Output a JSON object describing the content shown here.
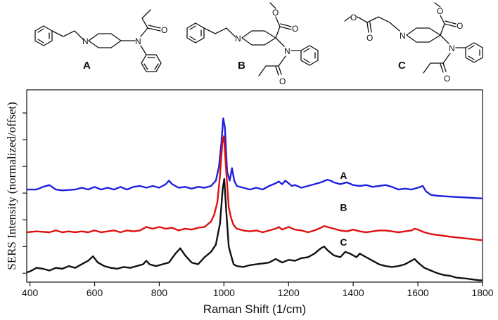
{
  "structures": {
    "A": {
      "label": "A",
      "atoms": [
        "N",
        "N",
        "O"
      ]
    },
    "B": {
      "label": "B",
      "atoms": [
        "N",
        "N",
        "O",
        "O",
        "O"
      ]
    },
    "C": {
      "label": "C",
      "atoms": [
        "O",
        "O",
        "N",
        "O",
        "O",
        "N",
        "O"
      ]
    }
  },
  "chart_data": {
    "type": "line",
    "title": "",
    "xlabel": "Raman Shift (1/cm)",
    "ylabel": "SERS Intensity (normalized/offset)",
    "xlim": [
      390,
      1800
    ],
    "xticks": [
      400,
      600,
      800,
      1000,
      1200,
      1400,
      1600,
      1800
    ],
    "ylim": [
      0,
      1.08
    ],
    "yticks": [
      0.05,
      0.2,
      0.35,
      0.5,
      0.65,
      0.8,
      0.95
    ],
    "grid": false,
    "series": [
      {
        "name": "A",
        "color": "#1f1fe0",
        "label_at": [
          1370,
          0.58
        ],
        "x": [
          390,
          420,
          440,
          460,
          480,
          500,
          540,
          560,
          580,
          600,
          620,
          640,
          660,
          680,
          700,
          720,
          740,
          760,
          780,
          800,
          820,
          830,
          840,
          860,
          880,
          900,
          920,
          940,
          960,
          975,
          985,
          992,
          998,
          1003,
          1010,
          1018,
          1025,
          1032,
          1040,
          1060,
          1080,
          1100,
          1120,
          1140,
          1160,
          1170,
          1180,
          1190,
          1200,
          1210,
          1220,
          1240,
          1260,
          1280,
          1300,
          1320,
          1330,
          1340,
          1360,
          1380,
          1400,
          1420,
          1440,
          1460,
          1480,
          1500,
          1520,
          1540,
          1560,
          1580,
          1600,
          1615,
          1625,
          1640,
          1660,
          1700,
          1750,
          1800
        ],
        "y": [
          0.52,
          0.52,
          0.535,
          0.545,
          0.52,
          0.515,
          0.52,
          0.53,
          0.52,
          0.535,
          0.52,
          0.53,
          0.52,
          0.535,
          0.52,
          0.535,
          0.54,
          0.53,
          0.54,
          0.53,
          0.55,
          0.57,
          0.55,
          0.53,
          0.535,
          0.525,
          0.535,
          0.53,
          0.54,
          0.57,
          0.65,
          0.78,
          0.92,
          0.87,
          0.62,
          0.57,
          0.64,
          0.57,
          0.54,
          0.53,
          0.52,
          0.53,
          0.52,
          0.54,
          0.555,
          0.565,
          0.55,
          0.57,
          0.555,
          0.54,
          0.545,
          0.53,
          0.54,
          0.55,
          0.56,
          0.575,
          0.57,
          0.56,
          0.55,
          0.56,
          0.545,
          0.54,
          0.545,
          0.535,
          0.54,
          0.545,
          0.535,
          0.52,
          0.525,
          0.52,
          0.53,
          0.54,
          0.51,
          0.49,
          0.485,
          0.48,
          0.475,
          0.47
        ]
      },
      {
        "name": "B",
        "color": "#e01010",
        "label_at": [
          1370,
          0.4
        ],
        "x": [
          390,
          420,
          460,
          480,
          500,
          520,
          540,
          560,
          580,
          600,
          620,
          640,
          660,
          680,
          700,
          720,
          740,
          760,
          780,
          800,
          820,
          840,
          860,
          880,
          900,
          920,
          940,
          960,
          970,
          980,
          988,
          995,
          1000,
          1008,
          1015,
          1022,
          1030,
          1040,
          1060,
          1080,
          1100,
          1120,
          1140,
          1160,
          1170,
          1180,
          1200,
          1220,
          1240,
          1260,
          1280,
          1300,
          1310,
          1320,
          1340,
          1360,
          1380,
          1400,
          1420,
          1440,
          1460,
          1480,
          1500,
          1520,
          1540,
          1560,
          1580,
          1590,
          1600,
          1620,
          1640,
          1660,
          1700,
          1750,
          1800
        ],
        "y": [
          0.28,
          0.285,
          0.28,
          0.29,
          0.28,
          0.285,
          0.28,
          0.285,
          0.28,
          0.29,
          0.28,
          0.285,
          0.29,
          0.28,
          0.29,
          0.285,
          0.29,
          0.31,
          0.3,
          0.31,
          0.3,
          0.305,
          0.29,
          0.3,
          0.295,
          0.305,
          0.31,
          0.34,
          0.38,
          0.45,
          0.6,
          0.78,
          0.82,
          0.6,
          0.42,
          0.36,
          0.32,
          0.3,
          0.29,
          0.285,
          0.29,
          0.28,
          0.29,
          0.3,
          0.31,
          0.295,
          0.31,
          0.295,
          0.29,
          0.28,
          0.29,
          0.305,
          0.315,
          0.31,
          0.3,
          0.29,
          0.285,
          0.295,
          0.285,
          0.28,
          0.285,
          0.29,
          0.29,
          0.285,
          0.28,
          0.285,
          0.29,
          0.3,
          0.295,
          0.28,
          0.27,
          0.265,
          0.255,
          0.245,
          0.235
        ]
      },
      {
        "name": "C",
        "color": "#111111",
        "label_at": [
          1370,
          0.205
        ],
        "x": [
          390,
          400,
          420,
          440,
          460,
          480,
          500,
          520,
          540,
          560,
          580,
          595,
          610,
          630,
          650,
          670,
          690,
          710,
          730,
          750,
          760,
          770,
          790,
          810,
          830,
          850,
          865,
          880,
          900,
          920,
          940,
          960,
          975,
          988,
          996,
          1001,
          1008,
          1015,
          1022,
          1030,
          1040,
          1060,
          1080,
          1100,
          1120,
          1140,
          1160,
          1170,
          1180,
          1200,
          1220,
          1240,
          1260,
          1280,
          1300,
          1310,
          1320,
          1340,
          1360,
          1375,
          1390,
          1410,
          1420,
          1440,
          1460,
          1480,
          1500,
          1520,
          1540,
          1560,
          1580,
          1590,
          1600,
          1620,
          1640,
          1660,
          1680,
          1700,
          1720,
          1750,
          1770,
          1790,
          1800
        ],
        "y": [
          0.055,
          0.06,
          0.08,
          0.075,
          0.065,
          0.08,
          0.075,
          0.09,
          0.08,
          0.1,
          0.12,
          0.145,
          0.11,
          0.09,
          0.08,
          0.075,
          0.085,
          0.08,
          0.09,
          0.1,
          0.12,
          0.1,
          0.09,
          0.1,
          0.11,
          0.16,
          0.19,
          0.15,
          0.11,
          0.1,
          0.14,
          0.17,
          0.21,
          0.33,
          0.52,
          0.58,
          0.38,
          0.2,
          0.15,
          0.1,
          0.09,
          0.085,
          0.095,
          0.1,
          0.105,
          0.11,
          0.13,
          0.12,
          0.11,
          0.125,
          0.12,
          0.135,
          0.14,
          0.16,
          0.19,
          0.2,
          0.18,
          0.15,
          0.14,
          0.17,
          0.16,
          0.14,
          0.16,
          0.14,
          0.12,
          0.1,
          0.09,
          0.085,
          0.09,
          0.1,
          0.12,
          0.13,
          0.11,
          0.08,
          0.065,
          0.05,
          0.04,
          0.035,
          0.025,
          0.02,
          0.015,
          0.01,
          0.01
        ]
      }
    ]
  }
}
